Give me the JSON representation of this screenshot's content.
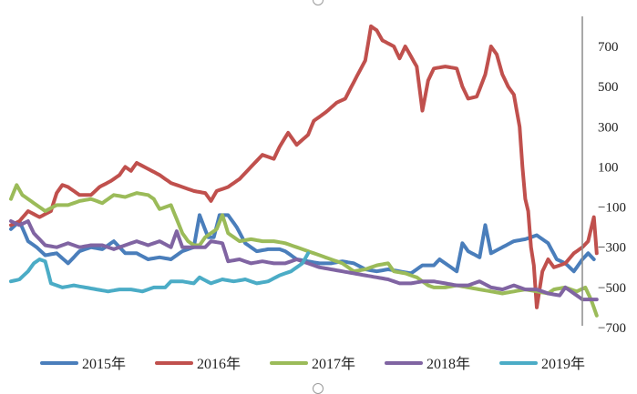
{
  "chart_data": {
    "type": "line",
    "title": "",
    "xlabel": "",
    "ylabel": "",
    "ylim": [
      -700,
      900
    ],
    "y_axis_position": "right",
    "y_ticks": [
      700,
      500,
      300,
      100,
      -100,
      -300,
      -500,
      -700
    ],
    "y_tick_labels": [
      "700",
      "500",
      "300",
      "100",
      "−100",
      "−300",
      "−500",
      "−700"
    ],
    "grid": false,
    "legend_position": "bottom",
    "n_points": 200,
    "series": [
      {
        "name": "2015年",
        "color": "#4a7ebb",
        "anchors": [
          [
            0,
            -210
          ],
          [
            3,
            -170
          ],
          [
            6,
            -270
          ],
          [
            9,
            -300
          ],
          [
            12,
            -340
          ],
          [
            16,
            -330
          ],
          [
            20,
            -380
          ],
          [
            24,
            -320
          ],
          [
            28,
            -300
          ],
          [
            32,
            -310
          ],
          [
            36,
            -270
          ],
          [
            40,
            -330
          ],
          [
            44,
            -330
          ],
          [
            48,
            -360
          ],
          [
            52,
            -350
          ],
          [
            56,
            -360
          ],
          [
            60,
            -320
          ],
          [
            64,
            -300
          ],
          [
            66,
            -140
          ],
          [
            69,
            -250
          ],
          [
            71,
            -250
          ],
          [
            73,
            -140
          ],
          [
            76,
            -140
          ],
          [
            79,
            -200
          ],
          [
            82,
            -280
          ],
          [
            86,
            -320
          ],
          [
            90,
            -310
          ],
          [
            94,
            -310
          ],
          [
            96,
            -320
          ],
          [
            100,
            -360
          ],
          [
            104,
            -370
          ],
          [
            108,
            -380
          ],
          [
            112,
            -380
          ],
          [
            116,
            -370
          ],
          [
            120,
            -380
          ],
          [
            124,
            -410
          ],
          [
            128,
            -420
          ],
          [
            132,
            -410
          ],
          [
            136,
            -420
          ],
          [
            140,
            -430
          ],
          [
            144,
            -390
          ],
          [
            148,
            -390
          ],
          [
            150,
            -360
          ],
          [
            152,
            -380
          ],
          [
            156,
            -420
          ],
          [
            158,
            -280
          ],
          [
            160,
            -320
          ],
          [
            164,
            -350
          ],
          [
            166,
            -190
          ],
          [
            168,
            -330
          ],
          [
            172,
            -300
          ],
          [
            176,
            -270
          ],
          [
            180,
            -260
          ],
          [
            184,
            -240
          ],
          [
            188,
            -280
          ],
          [
            191,
            -360
          ],
          [
            194,
            -380
          ],
          [
            197,
            -420
          ],
          [
            200,
            -360
          ],
          [
            202,
            -330
          ],
          [
            204,
            -360
          ]
        ]
      },
      {
        "name": "2016年",
        "color": "#c0504d",
        "anchors": [
          [
            0,
            -190
          ],
          [
            3,
            -170
          ],
          [
            6,
            -120
          ],
          [
            10,
            -150
          ],
          [
            14,
            -120
          ],
          [
            16,
            -30
          ],
          [
            18,
            10
          ],
          [
            20,
            0
          ],
          [
            24,
            -40
          ],
          [
            28,
            -40
          ],
          [
            31,
            0
          ],
          [
            35,
            30
          ],
          [
            38,
            60
          ],
          [
            40,
            100
          ],
          [
            42,
            80
          ],
          [
            44,
            120
          ],
          [
            48,
            90
          ],
          [
            52,
            60
          ],
          [
            56,
            20
          ],
          [
            60,
            0
          ],
          [
            64,
            -20
          ],
          [
            68,
            -30
          ],
          [
            70,
            -70
          ],
          [
            72,
            -20
          ],
          [
            76,
            0
          ],
          [
            80,
            40
          ],
          [
            84,
            100
          ],
          [
            88,
            160
          ],
          [
            92,
            140
          ],
          [
            94,
            200
          ],
          [
            97,
            270
          ],
          [
            100,
            210
          ],
          [
            104,
            260
          ],
          [
            106,
            330
          ],
          [
            110,
            370
          ],
          [
            114,
            420
          ],
          [
            117,
            440
          ],
          [
            121,
            550
          ],
          [
            124,
            630
          ],
          [
            126,
            800
          ],
          [
            128,
            780
          ],
          [
            130,
            730
          ],
          [
            134,
            700
          ],
          [
            136,
            640
          ],
          [
            138,
            700
          ],
          [
            140,
            650
          ],
          [
            142,
            600
          ],
          [
            144,
            380
          ],
          [
            146,
            530
          ],
          [
            148,
            590
          ],
          [
            152,
            600
          ],
          [
            156,
            590
          ],
          [
            158,
            500
          ],
          [
            160,
            440
          ],
          [
            163,
            450
          ],
          [
            166,
            560
          ],
          [
            168,
            700
          ],
          [
            170,
            660
          ],
          [
            172,
            560
          ],
          [
            174,
            500
          ],
          [
            176,
            460
          ],
          [
            178,
            300
          ],
          [
            179,
            100
          ],
          [
            180,
            -60
          ],
          [
            181,
            -120
          ],
          [
            182,
            -300
          ],
          [
            183,
            -390
          ],
          [
            184,
            -600
          ],
          [
            186,
            -420
          ],
          [
            188,
            -360
          ],
          [
            190,
            -400
          ],
          [
            194,
            -380
          ],
          [
            197,
            -330
          ],
          [
            200,
            -300
          ],
          [
            202,
            -270
          ],
          [
            204,
            -150
          ],
          [
            205,
            -330
          ]
        ]
      },
      {
        "name": "2017年",
        "color": "#9bbb59",
        "anchors": [
          [
            0,
            -60
          ],
          [
            2,
            10
          ],
          [
            4,
            -40
          ],
          [
            8,
            -80
          ],
          [
            12,
            -120
          ],
          [
            16,
            -90
          ],
          [
            20,
            -90
          ],
          [
            24,
            -70
          ],
          [
            28,
            -60
          ],
          [
            32,
            -80
          ],
          [
            36,
            -40
          ],
          [
            40,
            -50
          ],
          [
            44,
            -30
          ],
          [
            48,
            -40
          ],
          [
            50,
            -60
          ],
          [
            52,
            -110
          ],
          [
            56,
            -90
          ],
          [
            58,
            -160
          ],
          [
            60,
            -230
          ],
          [
            62,
            -270
          ],
          [
            64,
            -290
          ],
          [
            66,
            -290
          ],
          [
            68,
            -250
          ],
          [
            70,
            -230
          ],
          [
            72,
            -210
          ],
          [
            74,
            -140
          ],
          [
            76,
            -230
          ],
          [
            80,
            -270
          ],
          [
            84,
            -260
          ],
          [
            88,
            -270
          ],
          [
            92,
            -270
          ],
          [
            96,
            -280
          ],
          [
            100,
            -300
          ],
          [
            104,
            -320
          ],
          [
            108,
            -340
          ],
          [
            112,
            -360
          ],
          [
            116,
            -380
          ],
          [
            118,
            -400
          ],
          [
            120,
            -420
          ],
          [
            124,
            -410
          ],
          [
            128,
            -390
          ],
          [
            132,
            -380
          ],
          [
            134,
            -420
          ],
          [
            138,
            -430
          ],
          [
            142,
            -450
          ],
          [
            146,
            -490
          ],
          [
            148,
            -500
          ],
          [
            152,
            -500
          ],
          [
            156,
            -490
          ],
          [
            160,
            -500
          ],
          [
            164,
            -510
          ],
          [
            168,
            -520
          ],
          [
            172,
            -530
          ],
          [
            176,
            -520
          ],
          [
            180,
            -510
          ],
          [
            184,
            -520
          ],
          [
            188,
            -530
          ],
          [
            190,
            -510
          ],
          [
            194,
            -500
          ],
          [
            198,
            -520
          ],
          [
            201,
            -500
          ],
          [
            203,
            -560
          ],
          [
            205,
            -640
          ]
        ]
      },
      {
        "name": "2018年",
        "color": "#8064a2",
        "anchors": [
          [
            0,
            -170
          ],
          [
            3,
            -190
          ],
          [
            6,
            -170
          ],
          [
            8,
            -230
          ],
          [
            12,
            -290
          ],
          [
            16,
            -300
          ],
          [
            20,
            -280
          ],
          [
            24,
            -300
          ],
          [
            28,
            -290
          ],
          [
            32,
            -290
          ],
          [
            36,
            -310
          ],
          [
            40,
            -290
          ],
          [
            44,
            -270
          ],
          [
            48,
            -290
          ],
          [
            52,
            -270
          ],
          [
            56,
            -300
          ],
          [
            58,
            -220
          ],
          [
            60,
            -300
          ],
          [
            64,
            -300
          ],
          [
            68,
            -300
          ],
          [
            70,
            -270
          ],
          [
            74,
            -280
          ],
          [
            76,
            -370
          ],
          [
            80,
            -360
          ],
          [
            84,
            -380
          ],
          [
            88,
            -370
          ],
          [
            92,
            -380
          ],
          [
            96,
            -380
          ],
          [
            100,
            -360
          ],
          [
            104,
            -380
          ],
          [
            108,
            -400
          ],
          [
            112,
            -410
          ],
          [
            116,
            -420
          ],
          [
            120,
            -430
          ],
          [
            124,
            -440
          ],
          [
            128,
            -450
          ],
          [
            132,
            -460
          ],
          [
            136,
            -480
          ],
          [
            140,
            -480
          ],
          [
            144,
            -470
          ],
          [
            148,
            -470
          ],
          [
            152,
            -480
          ],
          [
            156,
            -490
          ],
          [
            160,
            -490
          ],
          [
            164,
            -470
          ],
          [
            168,
            -500
          ],
          [
            172,
            -510
          ],
          [
            176,
            -490
          ],
          [
            180,
            -510
          ],
          [
            184,
            -510
          ],
          [
            188,
            -530
          ],
          [
            192,
            -540
          ],
          [
            194,
            -500
          ],
          [
            196,
            -520
          ],
          [
            198,
            -540
          ],
          [
            200,
            -560
          ],
          [
            202,
            -560
          ],
          [
            205,
            -560
          ]
        ]
      },
      {
        "name": "2019年",
        "color": "#4bacc6",
        "anchors": [
          [
            0,
            -470
          ],
          [
            3,
            -460
          ],
          [
            6,
            -420
          ],
          [
            8,
            -380
          ],
          [
            10,
            -360
          ],
          [
            12,
            -370
          ],
          [
            14,
            -480
          ],
          [
            18,
            -500
          ],
          [
            22,
            -490
          ],
          [
            26,
            -500
          ],
          [
            30,
            -510
          ],
          [
            34,
            -520
          ],
          [
            38,
            -510
          ],
          [
            42,
            -510
          ],
          [
            46,
            -520
          ],
          [
            50,
            -500
          ],
          [
            54,
            -500
          ],
          [
            56,
            -470
          ],
          [
            60,
            -470
          ],
          [
            64,
            -480
          ],
          [
            66,
            -450
          ],
          [
            70,
            -480
          ],
          [
            74,
            -460
          ],
          [
            78,
            -470
          ],
          [
            82,
            -460
          ],
          [
            86,
            -480
          ],
          [
            90,
            -470
          ],
          [
            94,
            -440
          ],
          [
            98,
            -420
          ],
          [
            102,
            -380
          ],
          [
            104,
            -330
          ]
        ]
      }
    ]
  }
}
